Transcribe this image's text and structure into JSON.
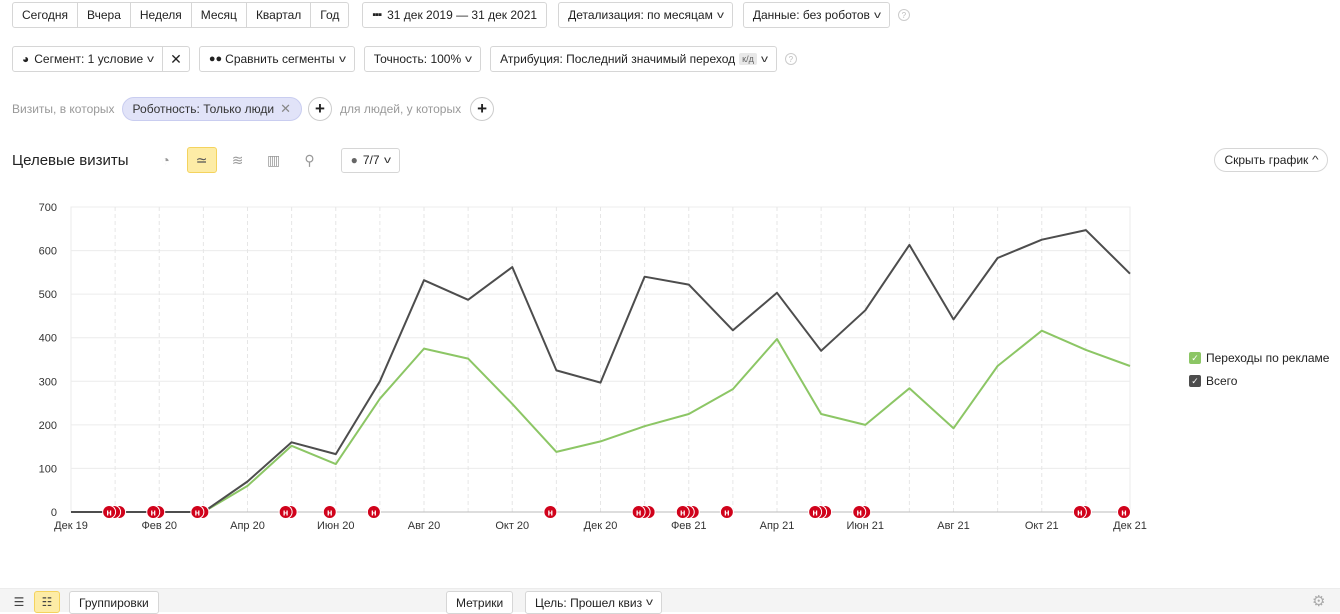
{
  "toolbar": {
    "periods": [
      "Сегодня",
      "Вчера",
      "Неделя",
      "Месяц",
      "Квартал",
      "Год"
    ],
    "date_range": "31 дек 2019 — 31 дек 2021",
    "detail": "Детализация: по месяцам",
    "data": "Данные: без роботов"
  },
  "toolbar2": {
    "segment": "Сегмент: 1 условие",
    "compare": "Сравнить сегменты",
    "accuracy": "Точность: 100%",
    "attribution": "Атрибуция: Последний значимый переход",
    "attribution_badge": "к/д"
  },
  "filters": {
    "visits_label": "Визиты, в которых",
    "chip": "Роботность: Только люди",
    "people_label": "для людей, у которых"
  },
  "report": {
    "title": "Целевые визиты",
    "notes": "7/7",
    "hide_chart": "Скрыть график"
  },
  "chart_data": {
    "type": "line",
    "x": [
      "Дек 19",
      "Янв 20",
      "Фев 20",
      "Мар 20",
      "Апр 20",
      "Май 20",
      "Июн 20",
      "Июл 20",
      "Авг 20",
      "Сен 20",
      "Окт 20",
      "Ноя 20",
      "Дек 20",
      "Янв 21",
      "Фев 21",
      "Мар 21",
      "Апр 21",
      "Май 21",
      "Июн 21",
      "Июл 21",
      "Авг 21",
      "Сен 21",
      "Окт 21",
      "Ноя 21",
      "Дек 21"
    ],
    "x_tick_labels": [
      "Дек 19",
      "Фев 20",
      "Апр 20",
      "Июн 20",
      "Авг 20",
      "Окт 20",
      "Дек 20",
      "Фев 21",
      "Апр 21",
      "Июн 21",
      "Авг 21",
      "Окт 21",
      "Дек 21"
    ],
    "ylim": [
      0,
      700
    ],
    "yticks": [
      0,
      100,
      200,
      300,
      400,
      500,
      600,
      700
    ],
    "grid": true,
    "legend_position": "right",
    "series": [
      {
        "name": "Переходы по рекламе",
        "color": "#8cc665",
        "values": [
          0,
          0,
          0,
          0,
          60,
          152,
          110,
          260,
          375,
          352,
          248,
          138,
          162,
          197,
          225,
          282,
          397,
          225,
          200,
          284,
          192,
          335,
          416,
          372,
          335
        ]
      },
      {
        "name": "Всего",
        "color": "#4d4d4d",
        "values": [
          0,
          0,
          0,
          0,
          70,
          160,
          133,
          300,
          532,
          487,
          562,
          325,
          297,
          540,
          522,
          417,
          503,
          370,
          463,
          613,
          442,
          583,
          625,
          647,
          547
        ]
      }
    ],
    "note_markers": [
      {
        "x": 1,
        "count": 3
      },
      {
        "x": 2,
        "count": 2
      },
      {
        "x": 3,
        "count": 2
      },
      {
        "x": 5,
        "count": 2
      },
      {
        "x": 6,
        "count": 1
      },
      {
        "x": 7,
        "count": 1
      },
      {
        "x": 11,
        "count": 1
      },
      {
        "x": 13,
        "count": 3
      },
      {
        "x": 14,
        "count": 3
      },
      {
        "x": 15,
        "count": 1
      },
      {
        "x": 17,
        "count": 3
      },
      {
        "x": 18,
        "count": 2
      },
      {
        "x": 23,
        "count": 2
      },
      {
        "x": 24,
        "count": 1
      }
    ],
    "note_label": "н"
  },
  "bottom": {
    "groupings": "Группировки",
    "metrics": "Метрики",
    "goal": "Цель: Прошел квиз"
  },
  "colors": {
    "accent_yellow": "#fdeca6",
    "chip_bg": "#e1e3f8",
    "note_red": "#d0021b",
    "green_series": "#8cc665",
    "total_series": "#4d4d4d"
  }
}
